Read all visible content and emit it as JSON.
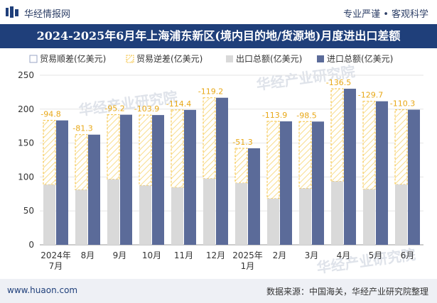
{
  "header": {
    "site_name": "华经情报网",
    "tagline": "专业严谨 • 客观科学"
  },
  "colors": {
    "title_bg": "#1f3f7a",
    "import": "#5b6b99",
    "export": "#d9d9d9",
    "deficit_stroke": "#f5c242",
    "axis_text": "#333333"
  },
  "chart_data": {
    "type": "bar",
    "title": "2024-2025年6月年上海浦东新区(境内目的地/货源地)月度进出口差额",
    "legend": [
      "贸易顺差(亿美元)",
      "贸易逆差(亿美元)",
      "出口总额(亿美元)",
      "进口总额(亿美元)"
    ],
    "legend_position": "top",
    "categories": [
      "2024年\n7月",
      "8月",
      "9月",
      "10月",
      "11月",
      "12月",
      "2025年\n1月",
      "2月",
      "3月",
      "4月",
      "5月",
      "6月"
    ],
    "ylim": [
      0,
      250
    ],
    "yticks": [
      0,
      50,
      100,
      150,
      200,
      250
    ],
    "series": [
      {
        "name": "贸易逆差(亿美元)",
        "values": [
          -94.8,
          -81.3,
          -95.2,
          -103.9,
          -114.4,
          -119.2,
          -51.3,
          -113.9,
          -98.5,
          -136.5,
          -129.7,
          -110.3
        ]
      },
      {
        "name": "出口总额(亿美元)",
        "values": [
          88.6,
          81.1,
          96.6,
          87.4,
          84.5,
          97.6,
          91.0,
          68.1,
          83.2,
          93.6,
          81.9,
          88.9
        ]
      },
      {
        "name": "进口总额(亿美元)",
        "values": [
          183.4,
          162.4,
          191.8,
          191.3,
          198.9,
          216.8,
          142.3,
          182.0,
          181.7,
          230.1,
          211.6,
          199.2
        ]
      }
    ]
  },
  "watermarks": [
    "华经产业研究院",
    "华经产业研究院",
    "华经产业研究院",
    "www.huaon.com"
  ],
  "footer": {
    "website": "www.huaon.com",
    "source": "数据来源：中国海关，华经产业研究院整理"
  }
}
